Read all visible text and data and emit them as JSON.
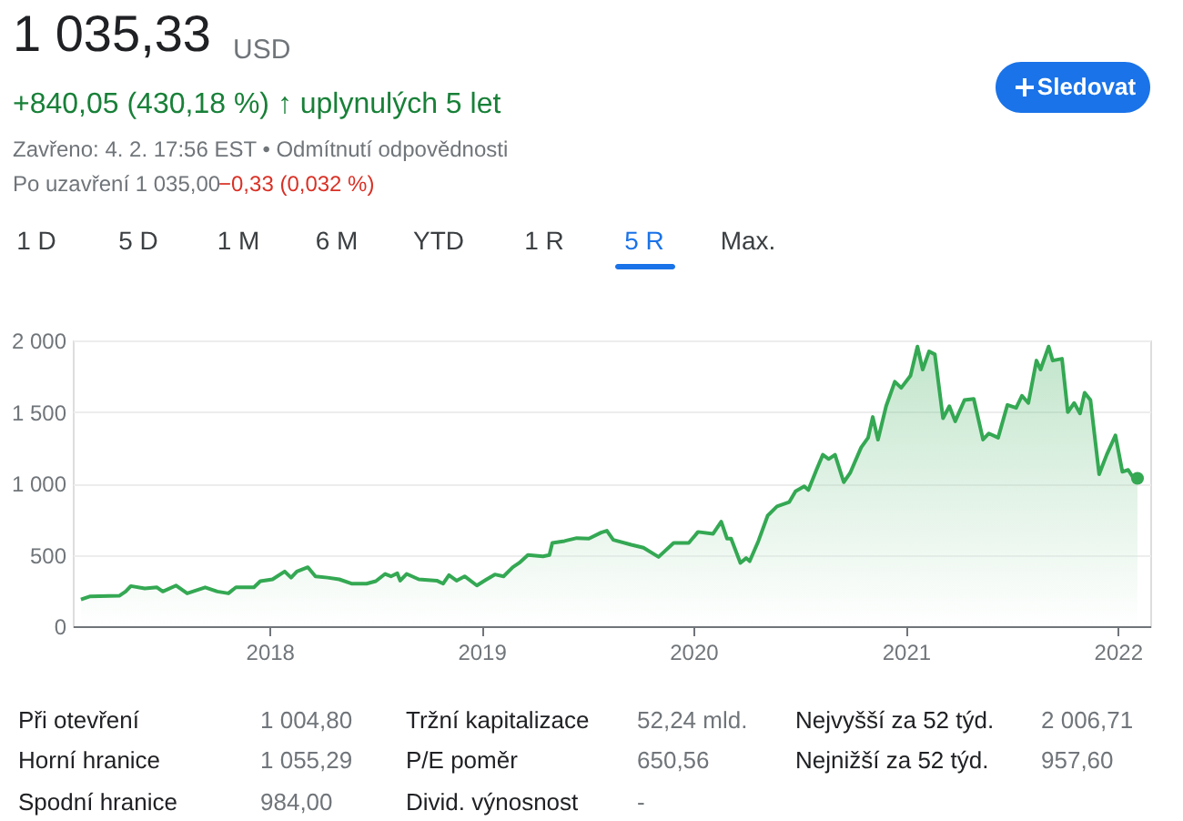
{
  "chart_data": {
    "type": "area",
    "annotations": [
      "1 035,33",
      "USD",
      "+840,05 (430,18 %) ↑ uplynulých 5 let",
      "Zavřeno: 4. 2. 17:56 EST • Odmítnutí odpovědnosti",
      "Po uzavření 1 035,00",
      "−0,33 (0,032 %)",
      "Sledovat",
      "1 D",
      "5 D",
      "1 M",
      "6 M",
      "YTD",
      "1 R",
      "5 R",
      "Max.",
      "Při otevření",
      "1 004,80",
      "Tržní kapitalizace",
      "52,24 mld.",
      "Nejvyšší za 52 týd.",
      "2 006,71",
      "Horní hranice",
      "1 055,29",
      "P/E poměr",
      "650,56",
      "Nejnižší za 52 týd.",
      "957,60",
      "Spodní hranice",
      "984,00",
      "Divid. výnosnost",
      "-"
    ],
    "xlim": [
      "2017-01-27",
      "2022-02-26"
    ],
    "xticks": [
      "2018",
      "2019",
      "2020",
      "2021",
      "2022"
    ],
    "ylim": [
      0,
      2000
    ],
    "yticks": [
      0,
      500,
      {
        "value": 1000,
        "label": "1 000"
      },
      {
        "value": 1500,
        "label": "1 500"
      },
      {
        "value": 2000,
        "label": "2 000"
      }
    ],
    "grid": "y",
    "series": [
      {
        "color": "#34a853",
        "x": [
          "2017-02-10",
          "2017-02-25",
          "2017-04-17",
          "2017-04-28",
          "2017-05-07",
          "2017-05-31",
          "2017-06-21",
          "2017-07-01",
          "2017-07-24",
          "2017-08-12",
          "2017-09-12",
          "2017-10-03",
          "2017-10-22",
          "2017-11-04",
          "2017-12-05",
          "2017-12-16",
          "2018-01-06",
          "2018-01-27",
          "2018-02-07",
          "2018-02-17",
          "2018-03-08",
          "2018-03-21",
          "2018-04-11",
          "2018-05-01",
          "2018-05-22",
          "2018-06-17",
          "2018-07-03",
          "2018-07-19",
          "2018-07-29",
          "2018-08-09",
          "2018-08-14",
          "2018-08-25",
          "2018-09-15",
          "2018-10-16",
          "2018-10-27",
          "2018-11-06",
          "2018-11-19",
          "2018-12-03",
          "2018-12-24",
          "2019-01-08",
          "2019-01-24",
          "2019-02-08",
          "2019-02-24",
          "2019-03-07",
          "2019-03-22",
          "2019-04-17",
          "2019-04-28",
          "2019-05-03",
          "2019-05-24",
          "2019-06-14",
          "2019-07-05",
          "2019-07-26",
          "2019-08-05",
          "2019-08-16",
          "2019-09-16",
          "2019-10-07",
          "2019-11-02",
          "2019-11-28",
          "2019-12-24",
          "2020-01-09",
          "2020-02-04",
          "2020-02-18",
          "2020-02-28",
          "2020-03-06",
          "2020-03-22",
          "2020-04-01",
          "2020-04-07",
          "2020-04-22",
          "2020-05-08",
          "2020-05-24",
          "2020-06-14",
          "2020-06-25",
          "2020-07-10",
          "2020-07-17",
          "2020-07-31",
          "2020-08-11",
          "2020-08-21",
          "2020-09-01",
          "2020-09-16",
          "2020-09-27",
          "2020-10-16",
          "2020-10-28",
          "2020-11-05",
          "2020-11-14",
          "2020-11-28",
          "2020-12-13",
          "2020-12-24",
          "2021-01-09",
          "2021-01-21",
          "2021-01-30",
          "2021-02-10",
          "2021-02-20",
          "2021-03-06",
          "2021-03-17",
          "2021-03-27",
          "2021-04-12",
          "2021-04-28",
          "2021-05-14",
          "2021-05-24",
          "2021-06-09",
          "2021-06-25",
          "2021-07-10",
          "2021-07-20",
          "2021-07-31",
          "2021-08-14",
          "2021-08-21",
          "2021-09-04",
          "2021-09-11",
          "2021-09-27",
          "2021-10-07",
          "2021-10-18",
          "2021-10-28",
          "2021-11-05",
          "2021-11-15",
          "2021-11-30",
          "2021-12-13",
          "2021-12-28",
          "2022-01-09",
          "2022-01-19",
          "2022-01-29",
          "2022-02-04"
        ],
        "values": [
          187,
          208,
          213,
          243,
          281,
          264,
          272,
          243,
          285,
          230,
          272,
          243,
          230,
          272,
          272,
          315,
          328,
          383,
          340,
          383,
          413,
          349,
          340,
          328,
          298,
          298,
          315,
          366,
          349,
          370,
          319,
          366,
          328,
          319,
          298,
          357,
          319,
          349,
          285,
          323,
          362,
          349,
          413,
          443,
          498,
          489,
          498,
          583,
          596,
          617,
          613,
          655,
          668,
          604,
          570,
          549,
          485,
          583,
          583,
          660,
          647,
          732,
          613,
          613,
          443,
          477,
          455,
          596,
          774,
          838,
          868,
          945,
          979,
          953,
          1094,
          1200,
          1170,
          1200,
          1008,
          1072,
          1251,
          1319,
          1464,
          1306,
          1540,
          1711,
          1668,
          1753,
          1957,
          1796,
          1923,
          1902,
          1455,
          1540,
          1434,
          1583,
          1591,
          1306,
          1349,
          1319,
          1549,
          1528,
          1613,
          1562,
          1859,
          1796,
          1957,
          1859,
          1872,
          1498,
          1562,
          1489,
          1634,
          1583,
          1064,
          1200,
          1336,
          1081,
          1094,
          1030,
          1035
        ]
      },
      {
        "type": "scatter",
        "color": "#34a853",
        "x": [
          "2022-02-04"
        ],
        "values": [
          1035
        ]
      }
    ]
  }
}
